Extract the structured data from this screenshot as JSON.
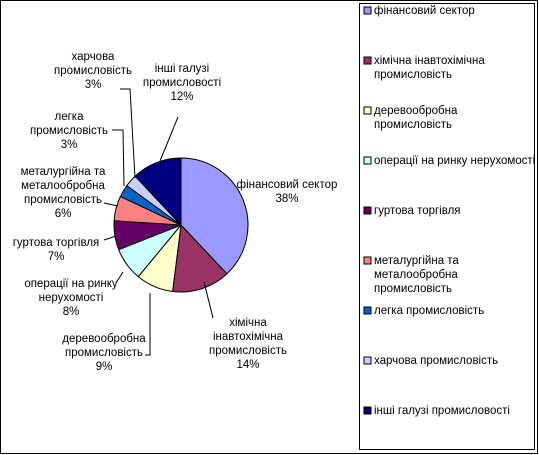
{
  "chart_data": {
    "type": "pie",
    "title": "",
    "legend_position": "right",
    "slices": [
      {
        "name": "фінансовий сектор",
        "label": [
          "фінансовий сектор"
        ],
        "value": 38,
        "value_label": "38%",
        "color": "#9999FF"
      },
      {
        "name": "хімічна інавтохімічна промисловість",
        "label": [
          "хімічна",
          "інавтохімічна",
          "промисловість"
        ],
        "value": 14,
        "value_label": "14%",
        "color": "#993366"
      },
      {
        "name": "деревообробна промисловість",
        "label": [
          "деревообробна",
          "промисловість"
        ],
        "value": 9,
        "value_label": "9%",
        "color": "#FFFFCC"
      },
      {
        "name": "операції на ринку нерухомості",
        "label": [
          "операції на ринку",
          "нерухомості"
        ],
        "value": 8,
        "value_label": "8%",
        "color": "#CCFFFF"
      },
      {
        "name": "гуртова торгівля",
        "label": [
          "гуртова торгівля"
        ],
        "value": 7,
        "value_label": "7%",
        "color": "#660066"
      },
      {
        "name": "металургійна та металообробна промисловість",
        "label": [
          "металургійна та",
          "металообробна",
          "промисловість"
        ],
        "value": 6,
        "value_label": "6%",
        "color": "#FF8080"
      },
      {
        "name": "легка промисловість",
        "label": [
          "легка",
          "промисловість"
        ],
        "value": 3,
        "value_label": "3%",
        "color": "#0066CC"
      },
      {
        "name": "харчова промисловість",
        "label": [
          "харчова",
          "промисловість"
        ],
        "value": 3,
        "value_label": "3%",
        "color": "#CCCCFF"
      },
      {
        "name": "інші галузі промисловості",
        "label": [
          "інші галузі",
          "промисловості"
        ],
        "value": 12,
        "value_label": "12%",
        "color": "#000080"
      }
    ],
    "legend": [
      [
        "фінансовий сектор"
      ],
      [
        "хімічна інавтохімічна",
        "промисловість"
      ],
      [
        "деревообробна",
        "промисловість"
      ],
      [
        "операції на ринку нерухомості"
      ],
      [
        "гуртова торгівля"
      ],
      [
        "металургійна та",
        "металообробна",
        "промисловість"
      ],
      [
        "легка промисловість"
      ],
      [
        "харчова промисловість"
      ],
      [
        "інші галузі промисловості"
      ]
    ]
  }
}
